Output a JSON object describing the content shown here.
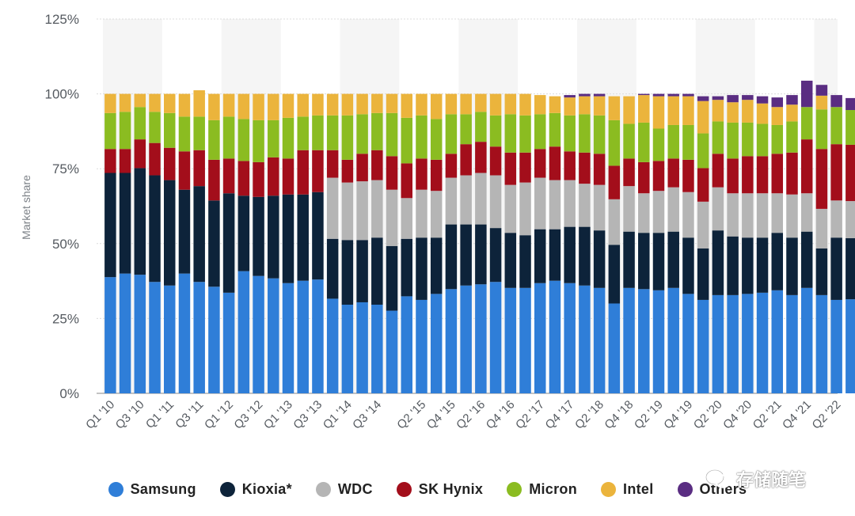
{
  "chart_data": {
    "type": "bar",
    "stacked": true,
    "ylabel": "Market share",
    "ylim": [
      0,
      125
    ],
    "yticks": [
      "0%",
      "25%",
      "50%",
      "75%",
      "100%",
      "125%"
    ],
    "ytick_values": [
      0,
      25,
      50,
      75,
      100,
      125
    ],
    "categories": [
      "Q1 '10",
      "Q2 '10",
      "Q3 '10",
      "Q4 '10",
      "Q1 '11",
      "Q2 '11",
      "Q3 '11",
      "Q4 '11",
      "Q1 '12",
      "Q2 '12",
      "Q3 '12",
      "Q4 '12",
      "Q1 '13",
      "Q2 '13",
      "Q3 '13",
      "Q4 '13",
      "Q1 '14",
      "Q2 '14",
      "Q3 '14",
      "Q4 '14",
      "Q1 '15",
      "Q2 '15",
      "Q3 '15",
      "Q4 '15",
      "Q1 '16",
      "Q2 '16",
      "Q3 '16",
      "Q4 '16",
      "Q1 '17",
      "Q2 '17",
      "Q3 '17",
      "Q4 '17",
      "Q1 '18",
      "Q2 '18",
      "Q3 '18",
      "Q4 '18",
      "Q1 '19",
      "Q2 '19",
      "Q3 '19",
      "Q4 '19",
      "Q1 '20",
      "Q2 '20",
      "Q3 '20",
      "Q4 '20",
      "Q1 '21",
      "Q2 '21",
      "Q3 '21",
      "Q4 '21",
      "Q1 '22",
      "Q2 '22",
      "Q3 '22"
    ],
    "xtick_labels": [
      "Q1 '10",
      "Q3 '10",
      "Q1 '11",
      "Q3 '11",
      "Q1 '12",
      "Q3 '12",
      "Q1 '13",
      "Q3 '13",
      "Q1 '14",
      "Q3 '14",
      "Q2 '15",
      "Q4 '15",
      "Q2 '16",
      "Q4 '16",
      "Q2 '17",
      "Q4 '17",
      "Q2 '18",
      "Q4 '18",
      "Q2 '19",
      "Q4 '19",
      "Q2 '20",
      "Q4 '20",
      "Q2 '21",
      "Q4 '21",
      "Q2 '22"
    ],
    "series": [
      {
        "name": "Samsung",
        "color": "#2f7ed8",
        "values": [
          38.8,
          40.0,
          39.6,
          37.2,
          36.0,
          40.0,
          37.2,
          35.6,
          33.6,
          40.8,
          39.2,
          38.4,
          36.8,
          37.6,
          38.0,
          31.6,
          29.6,
          30.4,
          29.6,
          27.6,
          32.4,
          31.2,
          33.2,
          34.8,
          36.0,
          36.4,
          37.2,
          35.2,
          35.2,
          36.8,
          37.6,
          36.8,
          36.0,
          35.2,
          30.0,
          35.2,
          34.8,
          34.4,
          35.2,
          33.2,
          31.2,
          32.8,
          32.8,
          33.2,
          33.6,
          34.4,
          32.8,
          35.2,
          32.8,
          31.2,
          31.4
        ]
      },
      {
        "name": "Kioxia*",
        "color": "#0d233a",
        "values": [
          34.8,
          33.6,
          35.6,
          35.6,
          35.2,
          28.0,
          32.0,
          28.8,
          33.2,
          25.2,
          26.4,
          27.6,
          29.6,
          28.8,
          29.2,
          20.0,
          21.6,
          20.8,
          22.4,
          21.6,
          19.2,
          20.8,
          18.8,
          21.6,
          20.4,
          20.0,
          18.0,
          18.4,
          17.6,
          18.0,
          17.2,
          18.8,
          19.6,
          19.2,
          19.6,
          18.8,
          18.8,
          19.2,
          18.8,
          18.8,
          17.2,
          21.6,
          19.6,
          18.8,
          18.4,
          19.2,
          19.2,
          18.8,
          15.6,
          20.8,
          20.4
        ]
      },
      {
        "name": "WDC",
        "color": "#b5b5b5",
        "values": [
          0,
          0,
          0,
          0,
          0,
          0,
          0,
          0,
          0,
          0,
          0,
          0,
          0,
          0,
          0,
          20.4,
          19.2,
          19.6,
          19.2,
          18.8,
          13.6,
          16.0,
          15.6,
          15.6,
          16.4,
          17.2,
          17.6,
          16.0,
          17.6,
          17.2,
          16.4,
          15.6,
          14.4,
          15.2,
          15.2,
          15.2,
          13.2,
          14.0,
          14.8,
          15.2,
          15.6,
          14.4,
          14.4,
          14.8,
          14.8,
          13.2,
          14.4,
          12.8,
          13.2,
          12.4,
          12.4
        ]
      },
      {
        "name": "SK Hynix",
        "color": "#a30e1b",
        "values": [
          8.0,
          8.0,
          9.6,
          10.8,
          10.8,
          12.8,
          12.0,
          13.6,
          11.6,
          11.6,
          11.6,
          12.8,
          12.0,
          14.8,
          14.0,
          9.2,
          7.6,
          9.2,
          10.0,
          11.2,
          11.6,
          10.4,
          10.4,
          8.0,
          10.4,
          10.4,
          9.6,
          10.8,
          10.0,
          9.6,
          11.2,
          9.6,
          10.4,
          10.4,
          11.2,
          9.2,
          10.4,
          10.0,
          9.6,
          10.8,
          11.2,
          11.2,
          11.6,
          12.4,
          12.4,
          13.2,
          14.0,
          18.0,
          20.0,
          18.8,
          18.8
        ]
      },
      {
        "name": "Micron",
        "color": "#8bbc21",
        "values": [
          12.0,
          12.4,
          10.8,
          10.4,
          11.6,
          11.6,
          11.2,
          13.2,
          14.0,
          14.0,
          14.0,
          12.4,
          13.6,
          11.2,
          11.6,
          11.6,
          14.8,
          13.2,
          12.4,
          14.4,
          15.2,
          14.4,
          13.6,
          13.2,
          10.0,
          10.0,
          10.4,
          12.8,
          12.4,
          11.6,
          11.2,
          12.0,
          12.8,
          12.8,
          15.2,
          11.6,
          13.2,
          10.8,
          11.2,
          11.6,
          11.6,
          10.8,
          12.0,
          11.2,
          10.8,
          9.6,
          10.4,
          10.8,
          13.2,
          12.4,
          11.6
        ]
      },
      {
        "name": "Intel",
        "color": "#ebb43c",
        "values": [
          6.4,
          6.0,
          4.4,
          6.0,
          6.4,
          7.6,
          8.8,
          8.8,
          7.6,
          8.4,
          8.8,
          8.8,
          8.0,
          7.6,
          7.2,
          7.2,
          7.2,
          6.8,
          6.4,
          6.4,
          8.0,
          7.2,
          8.4,
          6.8,
          6.8,
          6.0,
          7.2,
          6.8,
          7.2,
          6.4,
          5.6,
          6.0,
          6.0,
          6.4,
          8.0,
          9.2,
          9.2,
          10.8,
          9.6,
          9.6,
          10.8,
          7.2,
          6.8,
          7.6,
          6.8,
          6.0,
          5.6,
          0,
          4.6,
          0,
          0
        ]
      },
      {
        "name": "Others",
        "color": "#5a2d82",
        "values": [
          0,
          0,
          0,
          0,
          0,
          0,
          0,
          0,
          0,
          0,
          0,
          0,
          0,
          0,
          0,
          0,
          0,
          0,
          0,
          0,
          0,
          0,
          0,
          0,
          0,
          0,
          0,
          0,
          0,
          0,
          0,
          0.8,
          0.8,
          0.8,
          0,
          0,
          0.4,
          0.8,
          0.8,
          0.8,
          1.6,
          1.2,
          2.4,
          1.6,
          2.4,
          3.2,
          3.2,
          8.8,
          3.6,
          4.0,
          4.0
        ]
      }
    ]
  },
  "watermark": {
    "text": "存储随笔",
    "icon": "wechat-icon"
  }
}
